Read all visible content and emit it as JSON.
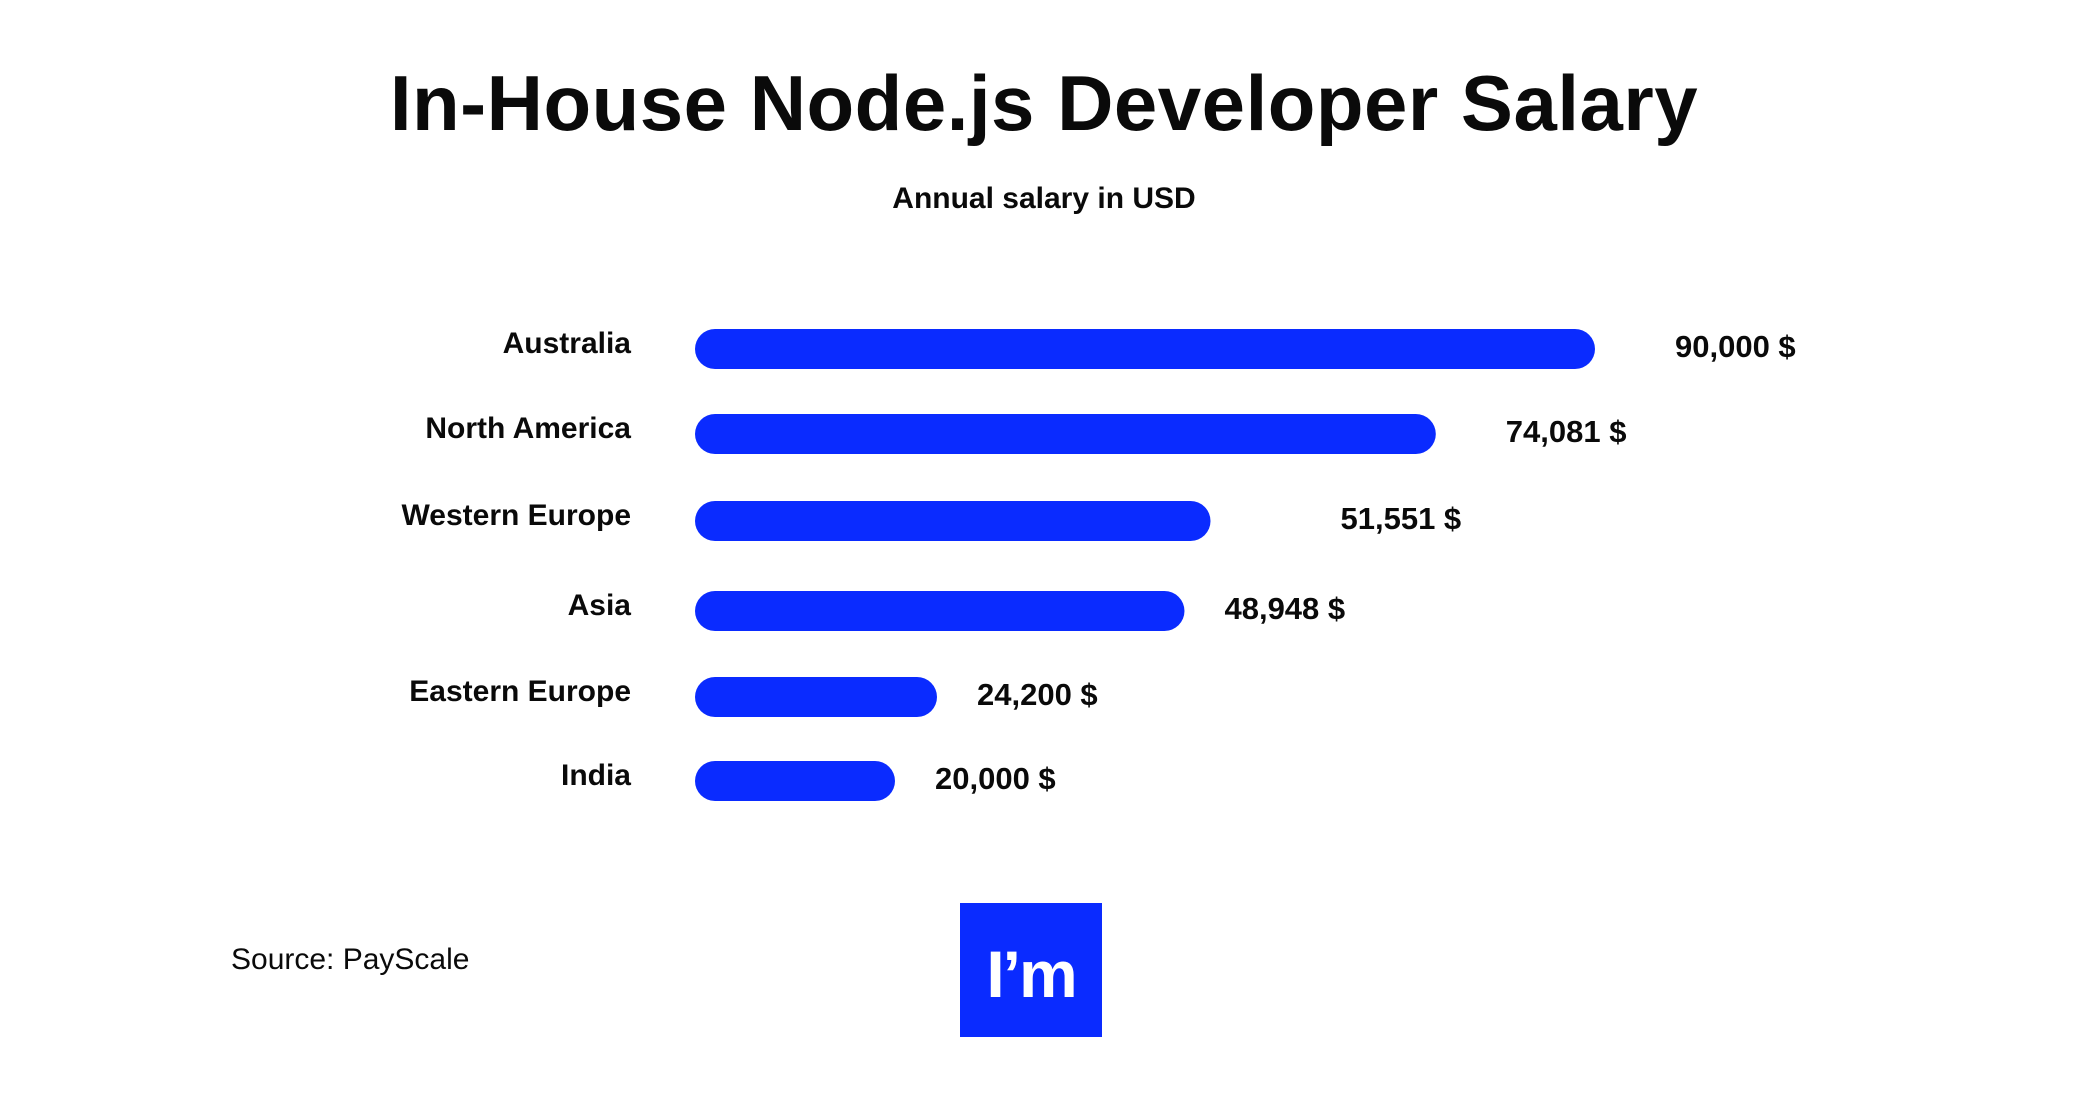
{
  "chart_data": {
    "type": "bar",
    "orientation": "horizontal",
    "title": "In-House Node.js Developer Salary",
    "subtitle": "Annual salary in USD",
    "categories": [
      "Australia",
      "North America",
      "Western Europe",
      "Asia",
      "Eastern Europe",
      "India"
    ],
    "values": [
      90000,
      74081,
      51551,
      48948,
      24200,
      20000
    ],
    "value_labels": [
      "90,000 $",
      "74,081 $",
      "51,551 $",
      "48,948 $",
      "24,200 $",
      "20,000 $"
    ],
    "xlim": [
      0,
      90000
    ],
    "grid": false,
    "bar_color": "#0a2bff"
  },
  "source": "Source: PayScale",
  "logo_text": "I’m",
  "colors": {
    "accent": "#0a2bff",
    "text": "#0a0a0a",
    "background": "#ffffff"
  }
}
